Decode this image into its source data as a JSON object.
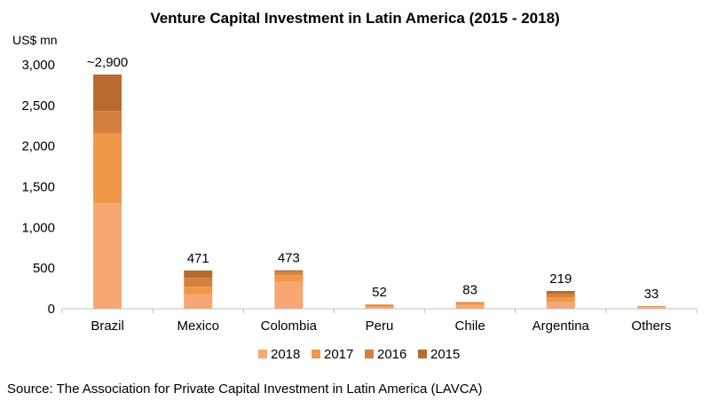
{
  "chart_data": {
    "type": "bar",
    "stacked": true,
    "title": "Venture Capital Investment in Latin America (2015 - 2018)",
    "unit_label": "US$ mn",
    "categories": [
      "Brazil",
      "Mexico",
      "Colombia",
      "Peru",
      "Chile",
      "Argentina",
      "Others"
    ],
    "series": [
      {
        "name": "2018",
        "color": "#F8A773",
        "values": [
          1300,
          180,
          330,
          20,
          45,
          80,
          20
        ]
      },
      {
        "name": "2017",
        "color": "#EE9848",
        "values": [
          860,
          90,
          90,
          15,
          25,
          60,
          8
        ]
      },
      {
        "name": "2016",
        "color": "#D4813F",
        "values": [
          270,
          110,
          35,
          12,
          10,
          45,
          3
        ]
      },
      {
        "name": "2015",
        "color": "#B86B2E",
        "values": [
          450,
          91,
          18,
          5,
          3,
          34,
          2
        ]
      }
    ],
    "data_labels": [
      "~2,900",
      "471",
      "473",
      "52",
      "83",
      "219",
      "33"
    ],
    "ylim": [
      0,
      3000
    ],
    "yticks": [
      0,
      500,
      1000,
      1500,
      2000,
      2500,
      3000
    ],
    "ytick_labels": [
      "0",
      "500",
      "1,000",
      "1,500",
      "2,000",
      "2,500",
      "3,000"
    ],
    "legend_position": "bottom",
    "gridlines": false
  },
  "source": "Source: The Association for Private Capital Investment in Latin America (LAVCA)"
}
